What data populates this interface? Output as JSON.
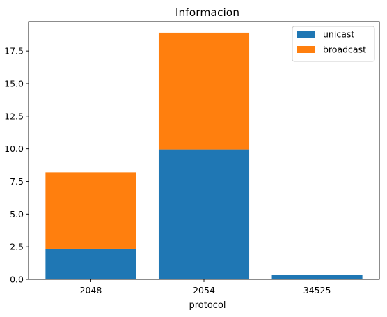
{
  "chart_data": {
    "type": "bar",
    "stacked": true,
    "title": "Informacion",
    "xlabel": "protocol",
    "ylabel": "",
    "categories": [
      "2048",
      "2054",
      "34525"
    ],
    "series": [
      {
        "name": "unicast",
        "values": [
          2.35,
          9.95,
          0.35
        ],
        "color": "#1f77b4"
      },
      {
        "name": "broadcast",
        "values": [
          5.85,
          8.95,
          0
        ],
        "color": "#ff7f0e"
      }
    ],
    "ylim": [
      0,
      19.75
    ],
    "yticks": [
      0.0,
      2.5,
      5.0,
      7.5,
      10.0,
      12.5,
      15.0,
      17.5
    ],
    "ytick_labels": [
      "0.0",
      "2.5",
      "5.0",
      "7.5",
      "10.0",
      "12.5",
      "15.0",
      "17.5"
    ],
    "grid": false,
    "legend_position": "top-right"
  }
}
